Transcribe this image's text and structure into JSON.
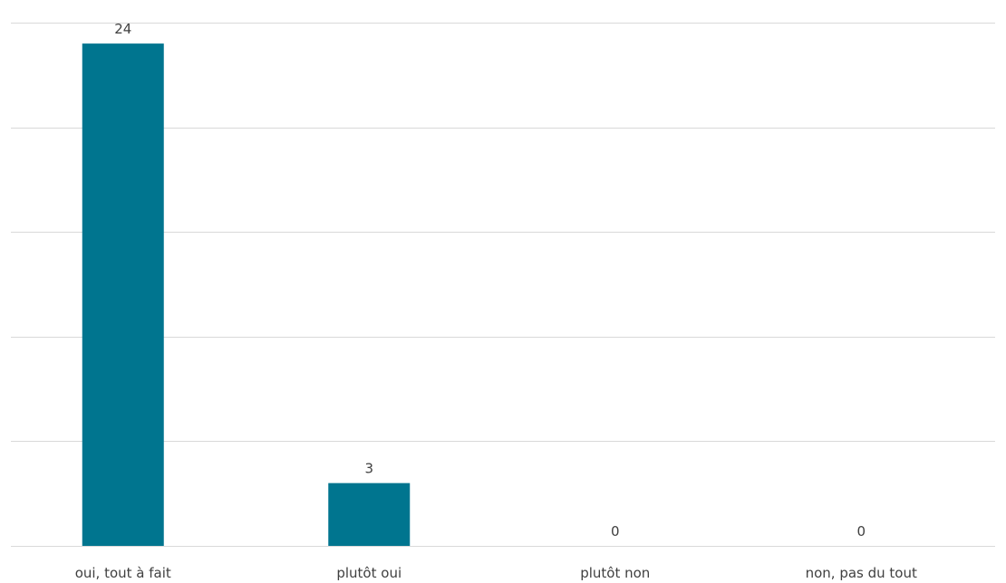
{
  "chart_data": {
    "type": "bar",
    "categories": [
      "oui, tout à fait",
      "plutôt oui",
      "plutôt non",
      "non, pas du tout"
    ],
    "values": [
      24,
      3,
      0,
      0
    ],
    "data_labels": [
      "24",
      "3",
      "0",
      "0"
    ],
    "title": "",
    "xlabel": "",
    "ylabel": "",
    "ylim": [
      0,
      25
    ],
    "y_gridlines": [
      0,
      5,
      10,
      15,
      20,
      25
    ],
    "grid": true,
    "legend": "none",
    "bar_color": "#00758f",
    "gridline_color": "#d9d9d9",
    "text_color": "#404040"
  }
}
